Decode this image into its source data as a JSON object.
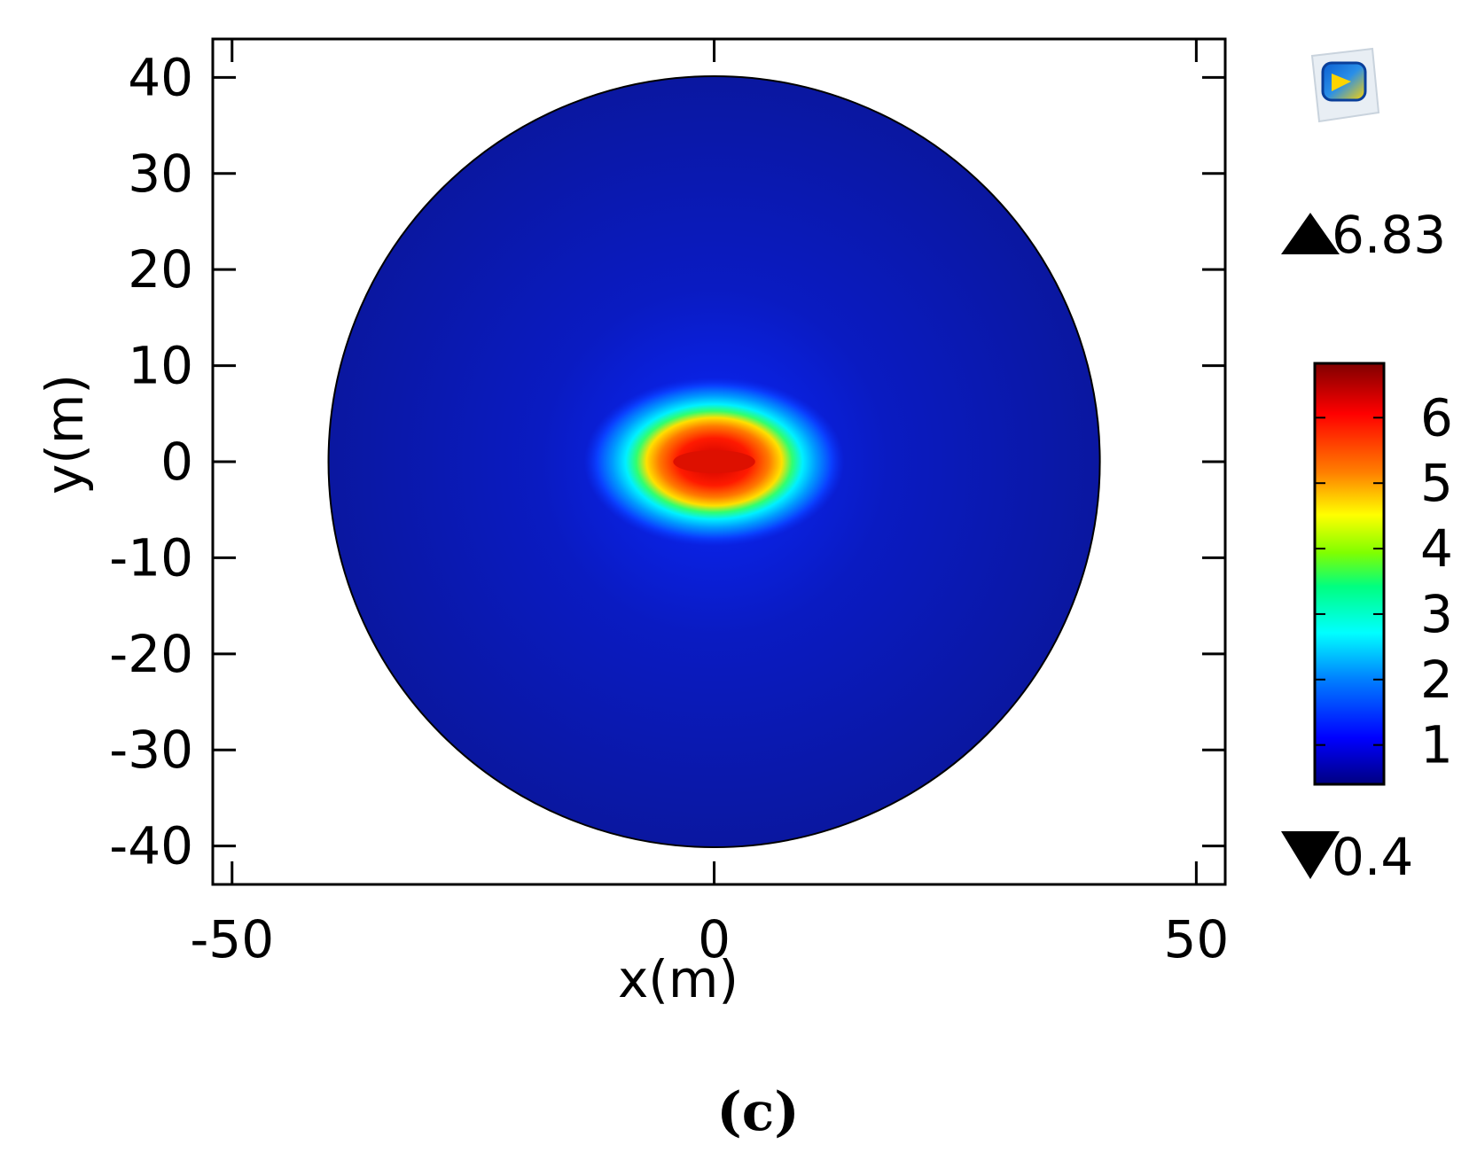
{
  "chart_data": {
    "type": "heatmap",
    "plot": "2D surface plot on a circular domain",
    "xlabel": "x(m)",
    "ylabel": "y(m)",
    "xlim": [
      -52,
      53
    ],
    "ylim": [
      -44,
      44
    ],
    "x_ticks": [
      -50,
      0,
      50
    ],
    "x_tick_labels": [
      "-50",
      "0",
      "50"
    ],
    "y_ticks": [
      40,
      30,
      20,
      10,
      0,
      -10,
      -20,
      -30,
      -40
    ],
    "y_tick_labels": [
      "40",
      "30",
      "20",
      "10",
      "0",
      "-10",
      "-20",
      "-30",
      "-40"
    ],
    "grid": false,
    "domain": {
      "shape": "circle",
      "center": [
        0,
        0
      ],
      "radius": 40
    },
    "hotspot": {
      "shape": "ellipse",
      "center": [
        0,
        0
      ],
      "semi_axis_x": 5,
      "semi_axis_y": 1.6
    },
    "background_value": 0.6,
    "colorbar": {
      "colormap": "rainbow",
      "ticks": [
        1,
        2,
        3,
        4,
        5,
        6
      ],
      "tick_labels": [
        "1",
        "2",
        "3",
        "4",
        "5",
        "6"
      ],
      "range": [
        0.4,
        6.83
      ],
      "max_label": "6.83",
      "min_label": "0.4",
      "placement": "right"
    },
    "colors": {
      "background_field": "#0a1aa6",
      "mid_field": "#0b2be0",
      "hot": "#e82000",
      "colormap_stops": [
        "#000080",
        "#0000ff",
        "#00a0ff",
        "#00ffff",
        "#00ff80",
        "#80ff00",
        "#ffff00",
        "#ff8000",
        "#ff0000",
        "#800000"
      ]
    },
    "caption": "(c)",
    "logo": "comsol-logo-icon"
  }
}
